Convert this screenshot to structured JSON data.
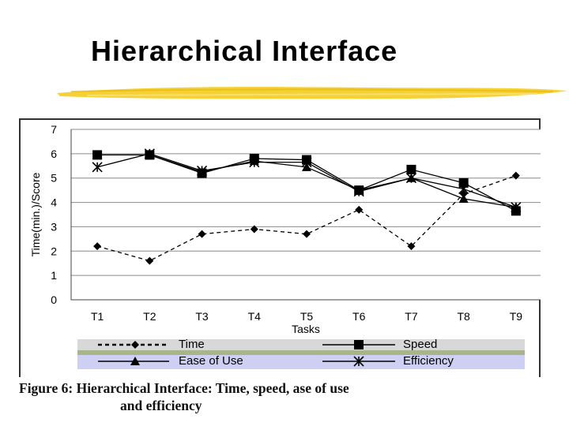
{
  "slide": {
    "title": "Hierarchical Interface",
    "underline_color": "#f2c81c"
  },
  "caption": {
    "line1": "Figure 6: Hierarchical Interface: Time, speed, ase of use",
    "line2": "and efficiency"
  },
  "chart_data": {
    "type": "line",
    "xlabel": "Tasks",
    "ylabel": "Time(min.)/Score",
    "categories": [
      "T1",
      "T2",
      "T3",
      "T4",
      "T5",
      "T6",
      "T7",
      "T8",
      "T9"
    ],
    "ylim": [
      0,
      7
    ],
    "yticks": [
      0,
      1,
      2,
      3,
      4,
      5,
      6,
      7
    ],
    "grid": true,
    "legend_position": "bottom",
    "series": [
      {
        "name": "Time",
        "marker": "diamond",
        "dash": "dashed",
        "values": [
          2.2,
          1.6,
          2.7,
          2.9,
          2.7,
          3.7,
          2.2,
          4.35,
          5.1
        ]
      },
      {
        "name": "Speed",
        "marker": "square",
        "dash": "solid",
        "values": [
          5.95,
          5.95,
          5.2,
          5.8,
          5.75,
          4.5,
          5.35,
          4.8,
          3.65
        ]
      },
      {
        "name": "Ease of Use",
        "marker": "triangle",
        "dash": "solid",
        "values": [
          5.95,
          5.95,
          5.25,
          5.7,
          5.45,
          4.5,
          5.0,
          4.15,
          3.8
        ]
      },
      {
        "name": "Efficiency",
        "marker": "star",
        "dash": "solid",
        "values": [
          5.45,
          6.0,
          5.3,
          5.65,
          5.65,
          4.45,
          5.0,
          4.55,
          3.8
        ]
      }
    ],
    "legend_colors": {
      "band_top": "#d8d8d8",
      "band_mid": "#a9b48a",
      "band_bottom": "#cdd0f2"
    }
  }
}
